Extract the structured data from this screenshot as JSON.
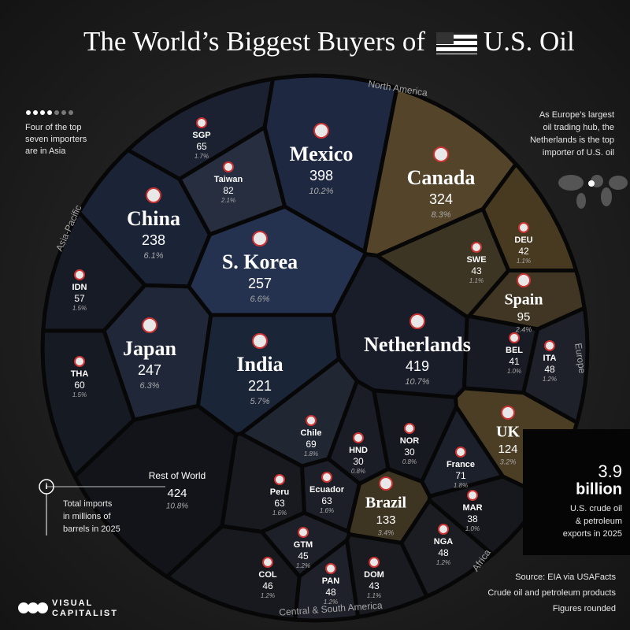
{
  "chart_data": {
    "type": "voronoi-treemap",
    "title": [
      "The World’s Biggest Buyers of",
      "U.S. Oil"
    ],
    "categories": [
      "Mexico",
      "Canada",
      "China",
      "S. Korea",
      "SGP",
      "Taiwan",
      "IDN",
      "Japan",
      "THA",
      "India",
      "Netherlands",
      "SWE",
      "DEU",
      "Spain",
      "BEL",
      "ITA",
      "UK",
      "France",
      "NOR",
      "HND",
      "Chile",
      "Ecuador",
      "Peru",
      "Brazil",
      "MAR",
      "NGA",
      "GTM",
      "COL",
      "PAN",
      "DOM",
      "Rest of World"
    ],
    "values": [
      398,
      324,
      238,
      257,
      65,
      82,
      57,
      247,
      60,
      221,
      419,
      43,
      42,
      95,
      41,
      48,
      124,
      71,
      30,
      30,
      69,
      63,
      63,
      133,
      38,
      48,
      45,
      46,
      48,
      43,
      424
    ],
    "share_labels": [
      "10.2%",
      "8.3%",
      "6.1%",
      "6.6%",
      "1.7%",
      "2.1%",
      "1.5%",
      "6.3%",
      "1.5%",
      "5.7%",
      "10.7%",
      "1.1%",
      "1.1%",
      "2.4%",
      "1.0%",
      "1.2%",
      "3.2%",
      "1.8%",
      "0.8%",
      "0.8%",
      "1.8%",
      "1.6%",
      "1.6%",
      "3.4%",
      "1.0%",
      "1.2%",
      "1.2%",
      "1.2%",
      "1.2%",
      "1.1%",
      "10.8%"
    ],
    "colors": [
      "#1e2841",
      "#54452a",
      "#1b2336",
      "#243250",
      "#1c2131",
      "#272e40",
      "#171b25",
      "#1f2739",
      "#161a23",
      "#1b2538",
      "#191d29",
      "#3c3523",
      "#473a20",
      "#403623",
      "#181b23",
      "#1e212a",
      "#4b3e24",
      "#1c202b",
      "#171920",
      "#1a1d26",
      "#212633",
      "#1c1f28",
      "#181a20",
      "#3d3421",
      "#16181d",
      "#1b1d22",
      "#1d2028",
      "#17191f",
      "#1e212a",
      "#191b21",
      "#121419"
    ],
    "regions": [
      "North America",
      "Asia-Pacific",
      "Europe",
      "Africa",
      "Central & South America"
    ],
    "notes": {
      "asia": [
        "Four of the top",
        "seven importers",
        "are in Asia"
      ],
      "netherlands": [
        "As Europe’s largest",
        "oil trading hub, the",
        "Netherlands is the top",
        "importer of U.S. oil"
      ],
      "legend": [
        "Total imports",
        "in millions of",
        "barrels in 2025"
      ],
      "total": 3.9,
      "total_unit": "billion",
      "total_caption": [
        "U.S. crude oil",
        "& petroleum",
        "exports in 2025"
      ],
      "source": [
        "Source: EIA via USAFacts",
        "Crude oil and petroleum products",
        "Figures rounded"
      ],
      "brand": [
        "VISUAL",
        "CAPITALIST"
      ]
    }
  }
}
